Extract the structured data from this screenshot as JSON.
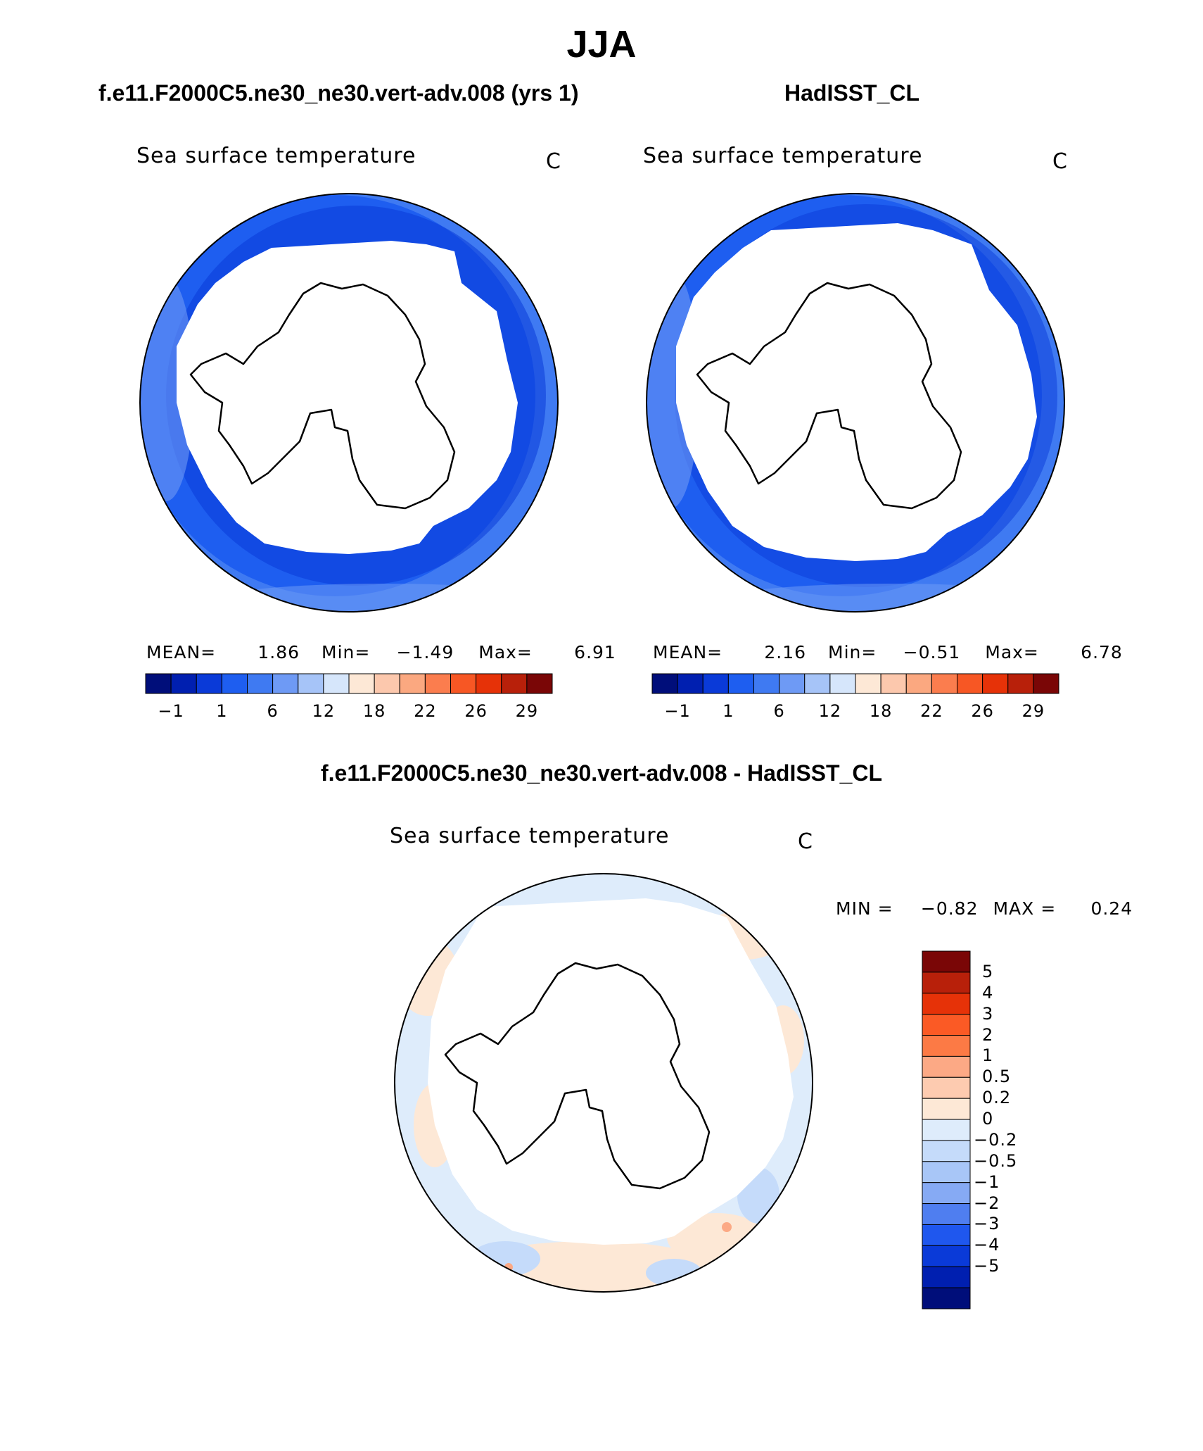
{
  "title": "JJA",
  "panels": [
    {
      "title": "f.e11.F2000C5.ne30_ne30.vert-adv.008 (yrs 1)",
      "variable": "Sea surface temperature",
      "units": "C",
      "stats": {
        "mean_label": "MEAN=",
        "mean": "1.86",
        "min_label": "Min=",
        "min": "−1.49",
        "max_label": "Max=",
        "max": "6.91"
      }
    },
    {
      "title": "HadISST_CL",
      "variable": "Sea surface temperature",
      "units": "C",
      "stats": {
        "mean_label": "MEAN=",
        "mean": "2.16",
        "min_label": "Min=",
        "min": "−0.51",
        "max_label": "Max=",
        "max": "6.78"
      }
    }
  ],
  "abs_colorbar": {
    "colors": [
      "#000e7a",
      "#001fb0",
      "#0a3ad8",
      "#1e5ef0",
      "#3f7af2",
      "#6e9af5",
      "#a6c4f8",
      "#d6e6fb",
      "#fde8d6",
      "#fcc8ad",
      "#fba880",
      "#fb7d4e",
      "#f75724",
      "#e63208",
      "#b8200a",
      "#7a0606"
    ],
    "labels": [
      "−1",
      "1",
      "6",
      "12",
      "18",
      "22",
      "26",
      "29"
    ]
  },
  "diff_panel": {
    "title": "f.e11.F2000C5.ne30_ne30.vert-adv.008 - HadISST_CL",
    "variable": "Sea surface temperature",
    "units": "C",
    "stats": {
      "min_label": "MIN =",
      "min": "−0.82",
      "max_label": "MAX =",
      "max": "0.24"
    }
  },
  "diff_colorbar": {
    "colors": [
      "#7a0606",
      "#b8200a",
      "#e63208",
      "#fb5a25",
      "#fc7a45",
      "#fca985",
      "#fdcbb0",
      "#fde8d6",
      "#deecfb",
      "#c5dbfa",
      "#a8c6f7",
      "#86aaf4",
      "#4f7ef0",
      "#1f57ee",
      "#0a3ad8",
      "#001fb0",
      "#000e7a"
    ],
    "labels": [
      "5",
      "4",
      "3",
      "2",
      "1",
      "0.5",
      "0.2",
      "0",
      "−0.2",
      "−0.5",
      "−1",
      "−2",
      "−3",
      "−4",
      "−5"
    ]
  }
}
